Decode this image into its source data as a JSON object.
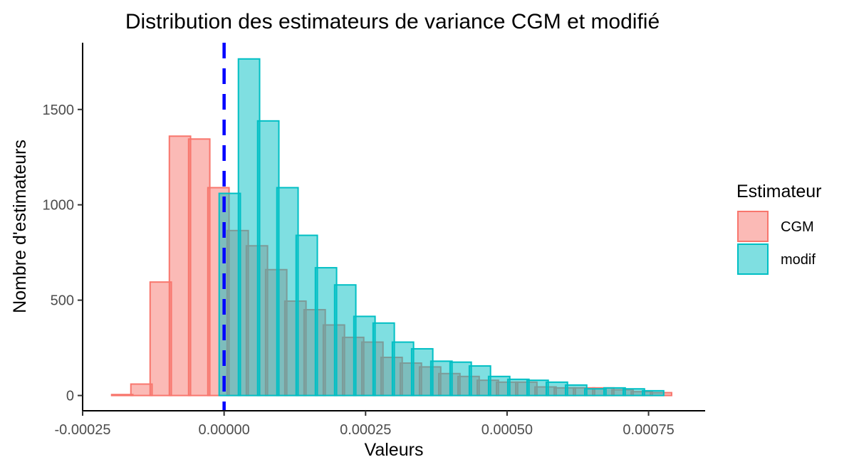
{
  "chart_data": {
    "type": "bar",
    "title": "Distribution des estimateurs de variance CGM et modifié",
    "xlabel": "Valeurs",
    "ylabel": "Nombre d'estimateurs",
    "xlim": [
      -0.00025,
      0.00085
    ],
    "ylim": [
      -80,
      1850
    ],
    "x_ticks": [
      -0.00025,
      0.0,
      0.00025,
      0.0005,
      0.00075
    ],
    "x_tick_labels": [
      "-0.00025",
      "0.00000",
      "0.00025",
      "0.00050",
      "0.00075"
    ],
    "y_ticks": [
      0,
      500,
      1000,
      1500
    ],
    "y_tick_labels": [
      "0",
      "500",
      "1000",
      "1500"
    ],
    "bin_width": 3.75e-05,
    "reference_line": {
      "x": 0.0,
      "color": "#0000FF",
      "style": "dashed"
    },
    "grid": false,
    "legend": {
      "title": "Estimateur",
      "position": "right"
    },
    "series": [
      {
        "name": "CGM",
        "fill": "#F8766D",
        "x": [
          -0.00018,
          -0.000146,
          -0.000112,
          -7.8e-05,
          -4.4e-05,
          -1e-05,
          2.4e-05,
          5.8e-05,
          9.2e-05,
          0.000126,
          0.00016,
          0.000194,
          0.000228,
          0.000262,
          0.000296,
          0.00033,
          0.000364,
          0.000398,
          0.000432,
          0.000466,
          0.0005,
          0.000534,
          0.000568,
          0.000602,
          0.000636,
          0.00067,
          0.000704,
          0.000738,
          0.000772
        ],
        "values": [
          5,
          60,
          595,
          1360,
          1345,
          1090,
          865,
          785,
          660,
          495,
          450,
          370,
          305,
          280,
          200,
          170,
          150,
          115,
          100,
          80,
          70,
          70,
          45,
          40,
          40,
          40,
          30,
          20,
          15
        ]
      },
      {
        "name": "modif",
        "fill": "#00BFC4",
        "x": [
          1e-05,
          4.4e-05,
          7.8e-05,
          0.000112,
          0.000146,
          0.00018,
          0.000214,
          0.000248,
          0.000282,
          0.000316,
          0.00035,
          0.000384,
          0.000418,
          0.000452,
          0.000486,
          0.00052,
          0.000554,
          0.000588,
          0.000622,
          0.000656,
          0.00069,
          0.000724,
          0.000758
        ],
        "values": [
          1060,
          1765,
          1440,
          1090,
          840,
          670,
          580,
          415,
          380,
          280,
          245,
          180,
          175,
          155,
          100,
          85,
          80,
          70,
          55,
          35,
          40,
          35,
          25
        ]
      }
    ]
  }
}
